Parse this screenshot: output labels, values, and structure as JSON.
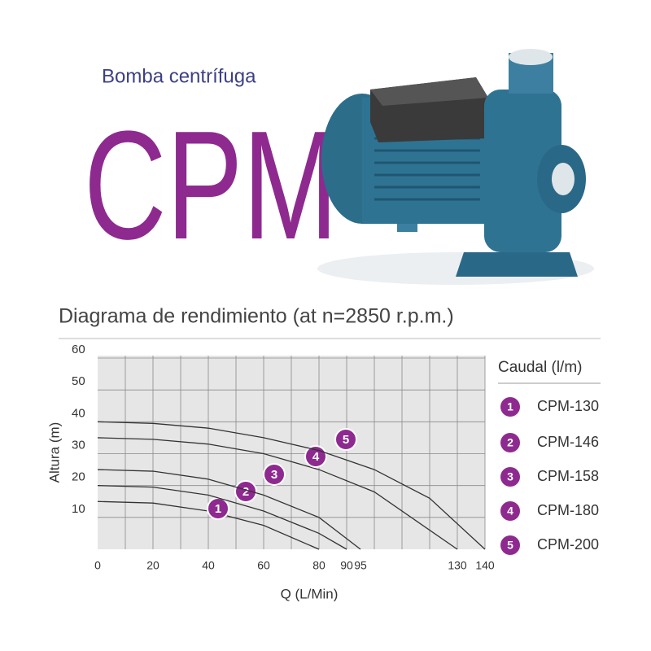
{
  "header": {
    "subtitle": "Bomba centrífuga",
    "title": "CPM"
  },
  "chart_data": {
    "type": "line",
    "title": "Diagrama de rendimiento (at n=2850 r.p.m.)",
    "x_label": "Q (L/Min)",
    "y_label": "Altura (m)",
    "xlim": [
      0,
      140
    ],
    "xticks": [
      0,
      20,
      40,
      60,
      80,
      90,
      95,
      130,
      140
    ],
    "xgrid_step": 10,
    "ylim": [
      0,
      60
    ],
    "yticks": [
      10,
      20,
      30,
      40,
      50,
      60
    ],
    "grid": true,
    "line_color": "#333333",
    "marker_color": "#8e2a8f",
    "legend_title": "Caudal (l/m)",
    "series": [
      {
        "name": "CPM-130",
        "marker": "1",
        "x": [
          0,
          20,
          40,
          60,
          80
        ],
        "values": [
          15,
          14.5,
          12,
          7.5,
          0
        ]
      },
      {
        "name": "CPM-146",
        "marker": "2",
        "x": [
          0,
          20,
          40,
          60,
          80,
          90
        ],
        "values": [
          20,
          19.5,
          17,
          12,
          5,
          0
        ]
      },
      {
        "name": "CPM-158",
        "marker": "3",
        "x": [
          0,
          20,
          40,
          60,
          80,
          95
        ],
        "values": [
          25,
          24.5,
          22,
          17,
          10,
          0
        ]
      },
      {
        "name": "CPM-180",
        "marker": "4",
        "x": [
          0,
          20,
          40,
          60,
          80,
          100,
          130
        ],
        "values": [
          35,
          34.5,
          33,
          30,
          25,
          18,
          0
        ]
      },
      {
        "name": "CPM-200",
        "marker": "5",
        "x": [
          0,
          20,
          40,
          60,
          80,
          100,
          120,
          140
        ],
        "values": [
          40,
          39.5,
          38,
          35,
          31,
          25,
          16,
          0
        ]
      }
    ]
  }
}
